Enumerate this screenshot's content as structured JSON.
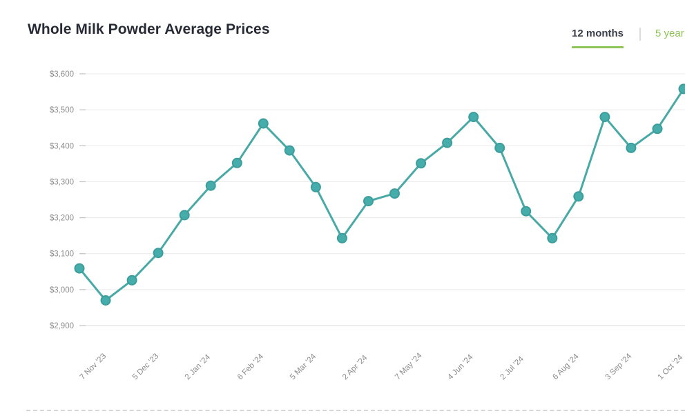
{
  "page": {
    "title": "Whole Milk Powder Average Prices"
  },
  "tabs": {
    "months_label": "12 months",
    "years_label": "5 year"
  },
  "chart_data": {
    "type": "line",
    "title": "Whole Milk Powder Average Prices",
    "xlabel": "",
    "ylabel": "",
    "ylim": [
      2900,
      3600
    ],
    "grid": "horizontal",
    "legend": "none",
    "values": [
      3059,
      2970,
      3026,
      3102,
      3207,
      3289,
      3352,
      3462,
      3387,
      3285,
      3143,
      3246,
      3267,
      3351,
      3408,
      3480,
      3394,
      3218,
      3143,
      3259,
      3480,
      3394,
      3447,
      3558
    ],
    "x_labels": [
      "7 Nov '23",
      "5 Dec '23",
      "2 Jan '24",
      "6 Feb '24",
      "5 Mar '24",
      "2 Apr '24",
      "7 May '24",
      "4 Jun '24",
      "2 Jul '24",
      "6 Aug '24",
      "3 Sep '24",
      "1 Oct '24"
    ],
    "x_label_point_indices": [
      0,
      2,
      4,
      6,
      8,
      10,
      12,
      14,
      16,
      18,
      20,
      22
    ],
    "y_ticks": [
      2900,
      3000,
      3100,
      3200,
      3300,
      3400,
      3500,
      3600
    ],
    "y_tick_labels": [
      "$2,900",
      "$3,000",
      "$3,100",
      "$3,200",
      "$3,300",
      "$3,400",
      "$3,500",
      "$3,600"
    ],
    "colors": {
      "line": "#48a9a6",
      "marker_fill": "#46adaa",
      "marker_stroke": "#3c9e9c",
      "grid": "#e9e9e9",
      "axis_bottom_line": "#d9d9d9",
      "y_tick_mark": "#c6c6c6",
      "axis_label": "#8c8c8c",
      "title": "#272b36",
      "accent_green": "#8fc45b",
      "inactive_tab_green": "#8cc355",
      "active_tab_text": "#3b3e4a",
      "tab_divider": "#dcdcdc",
      "dotted_separator": "#d6d6d6"
    }
  }
}
